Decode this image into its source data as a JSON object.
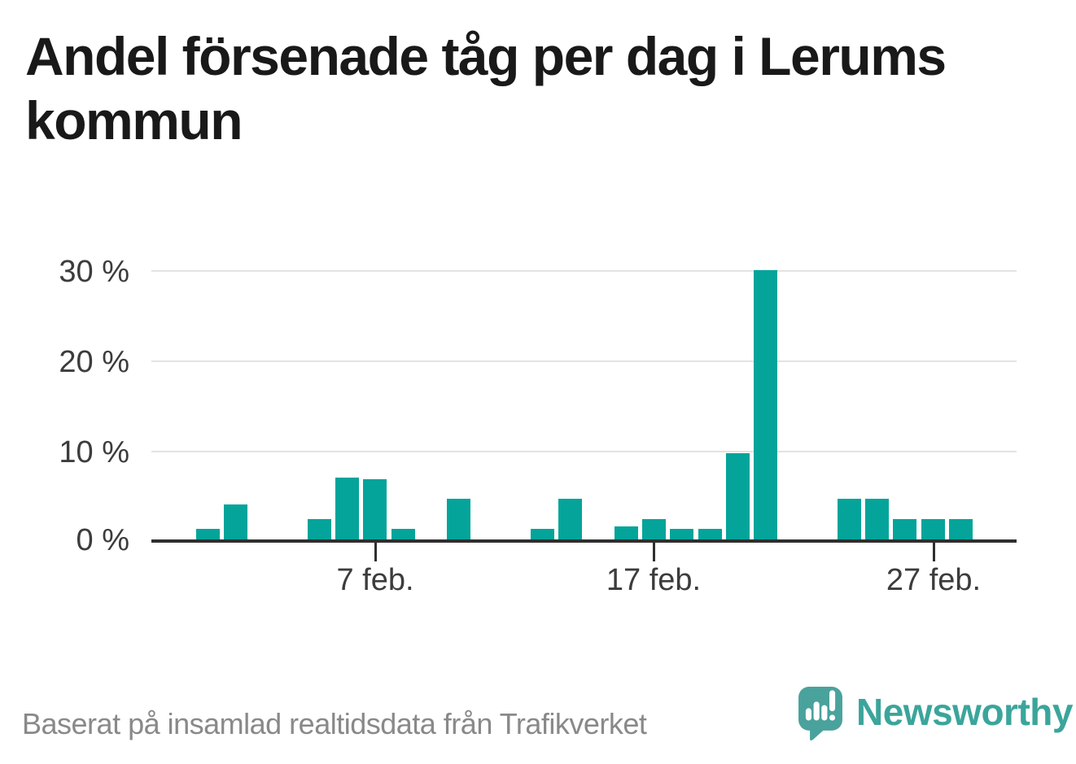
{
  "title": {
    "full": "Andel försenade tåg per dag i Lerums kommun",
    "lines": [
      "Andel försenade tåg per dag i Lerums",
      "kommun"
    ]
  },
  "chart_data": {
    "type": "bar",
    "title": "Andel försenade tåg per dag i Lerums kommun",
    "xlabel": "",
    "ylabel": "",
    "ylim": [
      0,
      30
    ],
    "grid": "horizontal",
    "legend": "none",
    "bar_color": "#04a49a",
    "categories": [
      "1 feb.",
      "2 feb.",
      "3 feb.",
      "4 feb.",
      "5 feb.",
      "6 feb.",
      "7 feb.",
      "8 feb.",
      "9 feb.",
      "10 feb.",
      "11 feb.",
      "12 feb.",
      "13 feb.",
      "14 feb.",
      "15 feb.",
      "16 feb.",
      "17 feb.",
      "18 feb.",
      "19 feb.",
      "20 feb.",
      "21 feb.",
      "22 feb.",
      "23 feb.",
      "24 feb.",
      "25 feb.",
      "26 feb.",
      "27 feb.",
      "28 feb."
    ],
    "values": [
      1.2,
      3.9,
      0,
      0,
      2.3,
      6.9,
      6.7,
      1.2,
      0,
      4.5,
      0,
      0,
      1.2,
      4.5,
      0,
      1.4,
      2.3,
      1.2,
      1.2,
      9.6,
      29.9,
      0,
      0,
      4.5,
      4.5,
      2.3,
      2.3,
      2.3
    ],
    "unit": "%",
    "x_tick_labels": [
      "7 feb.",
      "17 feb.",
      "27 feb."
    ],
    "y_tick_labels_top_to_bottom": [
      "30 %",
      "20 %",
      "10 %",
      "0 %"
    ]
  },
  "footer": {
    "source_note": "Baserat på insamlad realtidsdata från Trafikverket"
  },
  "branding": {
    "name": "Newsworthy",
    "icon": "newsworthy-speech-bubble-chart-icon",
    "brand_color": "#3ba59b",
    "bubble_color": "#4aa29c"
  }
}
